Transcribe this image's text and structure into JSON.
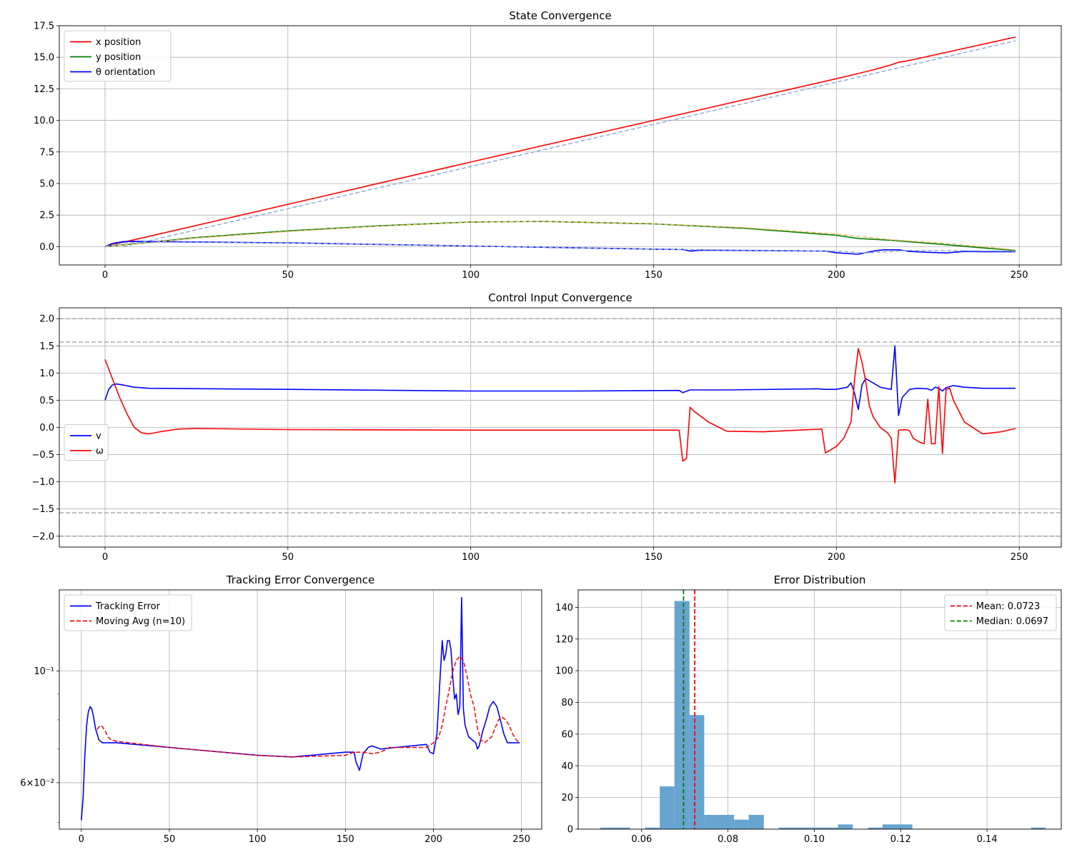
{
  "chart_data": [
    {
      "type": "line",
      "title": "State Convergence",
      "xlabel": "",
      "ylabel": "",
      "xlim": [
        -12.5,
        261.5
      ],
      "ylim": [
        -1.45,
        17.5
      ],
      "xticks": [
        0,
        50,
        100,
        150,
        200,
        250
      ],
      "yticks": [
        0.0,
        2.5,
        5.0,
        7.5,
        10.0,
        12.5,
        15.0,
        17.5
      ],
      "ytick_labels": [
        "0.0",
        "2.5",
        "5.0",
        "7.5",
        "10.0",
        "12.5",
        "15.0",
        "17.5"
      ],
      "grid": true,
      "legend": "upper-left",
      "series": [
        {
          "name": "x position",
          "color": "#ff0000",
          "style": "solid",
          "x": [
            0,
            5,
            10,
            50,
            100,
            150,
            200,
            205,
            210,
            215,
            217,
            220,
            249
          ],
          "y": [
            0,
            0.35,
            0.68,
            3.35,
            6.7,
            10.0,
            13.3,
            13.65,
            14.0,
            14.4,
            14.6,
            14.75,
            16.6
          ]
        },
        {
          "name": "y position",
          "color": "#008000",
          "style": "solid",
          "x": [
            0,
            10,
            25,
            50,
            75,
            100,
            120,
            150,
            175,
            200,
            206,
            215,
            230,
            240,
            249
          ],
          "y": [
            0,
            0.28,
            0.72,
            1.25,
            1.65,
            1.95,
            2.0,
            1.8,
            1.45,
            0.9,
            0.65,
            0.5,
            0.15,
            -0.1,
            -0.3
          ]
        },
        {
          "name": "θ orientation",
          "color": "#0000ff",
          "style": "solid",
          "x": [
            0,
            2,
            5,
            8,
            20,
            50,
            100,
            150,
            158,
            160,
            163,
            175,
            197,
            200,
            206,
            210,
            213,
            217,
            220,
            225,
            230,
            235,
            240,
            249
          ],
          "y": [
            0,
            0.25,
            0.4,
            0.42,
            0.38,
            0.3,
            0.05,
            -0.2,
            -0.22,
            -0.35,
            -0.28,
            -0.3,
            -0.35,
            -0.48,
            -0.6,
            -0.35,
            -0.25,
            -0.25,
            -0.38,
            -0.45,
            -0.5,
            -0.38,
            -0.4,
            -0.4
          ]
        },
        {
          "name": "",
          "color": "#92aed5",
          "style": "dashed",
          "x": [
            5,
            249
          ],
          "y": [
            0,
            16.3
          ]
        },
        {
          "name": "",
          "color": "#f0b86b",
          "style": "dashed",
          "x": [
            0,
            10,
            25,
            50,
            75,
            100,
            120,
            150,
            175,
            200,
            215,
            230,
            249
          ],
          "y": [
            0,
            0.25,
            0.68,
            1.2,
            1.62,
            1.93,
            2.0,
            1.82,
            1.5,
            1.0,
            0.55,
            0.25,
            -0.25
          ]
        },
        {
          "name": "",
          "color": "#92aed5",
          "style": "dashed",
          "x": [
            0,
            5,
            20,
            50,
            100,
            150,
            200,
            208,
            220,
            249
          ],
          "y": [
            0,
            0.3,
            0.35,
            0.28,
            0.05,
            -0.2,
            -0.35,
            -0.5,
            -0.3,
            -0.35
          ]
        }
      ]
    },
    {
      "type": "line",
      "title": "Control Input Convergence",
      "xlabel": "",
      "ylabel": "",
      "xlim": [
        -12.5,
        261.5
      ],
      "ylim": [
        -2.2,
        2.2
      ],
      "xticks": [
        0,
        50,
        100,
        150,
        200,
        250
      ],
      "yticks": [
        -2.0,
        -1.5,
        -1.0,
        -0.5,
        0.0,
        0.5,
        1.0,
        1.5,
        2.0
      ],
      "ytick_labels": [
        "−2.0",
        "−1.5",
        "−1.0",
        "−0.5",
        "0.0",
        "0.5",
        "1.0",
        "1.5",
        "2.0"
      ],
      "grid": true,
      "legend": "center-left",
      "reference_lines_y": [
        2.0,
        1.57,
        -1.57,
        -2.0
      ],
      "series": [
        {
          "name": "v",
          "color": "#0000ff",
          "style": "solid",
          "x": [
            0,
            1,
            2,
            3,
            5,
            8,
            12,
            50,
            100,
            130,
            157,
            158,
            160,
            170,
            195,
            197,
            200,
            203,
            204,
            205,
            206,
            207,
            208,
            210,
            212,
            214,
            215,
            216,
            217,
            218,
            220,
            222,
            225,
            226,
            227,
            228,
            229,
            230,
            232,
            235,
            240,
            245,
            249
          ],
          "y": [
            0.5,
            0.7,
            0.78,
            0.8,
            0.78,
            0.74,
            0.72,
            0.7,
            0.67,
            0.67,
            0.68,
            0.64,
            0.69,
            0.69,
            0.71,
            0.7,
            0.7,
            0.74,
            0.82,
            0.62,
            0.33,
            0.78,
            0.9,
            0.82,
            0.74,
            0.71,
            0.7,
            1.5,
            0.22,
            0.55,
            0.7,
            0.72,
            0.71,
            0.68,
            0.74,
            0.72,
            0.67,
            0.73,
            0.77,
            0.74,
            0.72,
            0.72,
            0.72
          ]
        },
        {
          "name": "ω",
          "color": "#ff0000",
          "style": "solid",
          "x": [
            0,
            2,
            4,
            6,
            8,
            10,
            12,
            15,
            20,
            25,
            50,
            100,
            157,
            158,
            159,
            160,
            161,
            165,
            170,
            180,
            196,
            197,
            200,
            202,
            204,
            205,
            206,
            207,
            208,
            209,
            210,
            212,
            214,
            215,
            216,
            217,
            219,
            220,
            221,
            223,
            224,
            225,
            226,
            227,
            228,
            229,
            230,
            231,
            232,
            235,
            240,
            245,
            249
          ],
          "y": [
            1.25,
            0.9,
            0.55,
            0.25,
            0.0,
            -0.1,
            -0.12,
            -0.08,
            -0.03,
            -0.02,
            -0.04,
            -0.05,
            -0.05,
            -0.62,
            -0.57,
            0.37,
            0.3,
            0.1,
            -0.07,
            -0.08,
            -0.03,
            -0.47,
            -0.35,
            -0.2,
            0.1,
            0.9,
            1.45,
            1.2,
            0.85,
            0.4,
            0.2,
            0.0,
            -0.1,
            -0.2,
            -1.02,
            -0.05,
            -0.04,
            -0.06,
            -0.2,
            -0.28,
            -0.3,
            0.52,
            -0.3,
            -0.3,
            0.75,
            -0.48,
            0.7,
            0.72,
            0.5,
            0.1,
            -0.12,
            -0.08,
            -0.02
          ]
        }
      ]
    },
    {
      "type": "line",
      "title": "Tracking Error Convergence",
      "xlabel": "",
      "ylabel": "",
      "yscale": "log",
      "xlim": [
        -12.5,
        261.5
      ],
      "ylim": [
        0.0485,
        0.145
      ],
      "xticks": [
        0,
        50,
        100,
        150,
        200,
        250
      ],
      "yticks": [
        0.1,
        0.06
      ],
      "ytick_labels": [
        "10⁻¹",
        "6×10⁻²"
      ],
      "grid": true,
      "legend": "upper-left",
      "series": [
        {
          "name": "Tracking Error",
          "color": "#0000ff",
          "style": "solid",
          "x": [
            0,
            1,
            2,
            3,
            4,
            5,
            6,
            7,
            8,
            10,
            12,
            15,
            20,
            50,
            100,
            120,
            150,
            155,
            156,
            158,
            160,
            163,
            165,
            170,
            196,
            198,
            200,
            202,
            204,
            205,
            206,
            207,
            208,
            209,
            210,
            211,
            212,
            213,
            214,
            215,
            216,
            217,
            218,
            220,
            222,
            224,
            225,
            226,
            228,
            230,
            232,
            234,
            236,
            238,
            240,
            242,
            245,
            249
          ],
          "y": [
            0.0505,
            0.056,
            0.068,
            0.078,
            0.083,
            0.085,
            0.084,
            0.081,
            0.077,
            0.073,
            0.072,
            0.072,
            0.072,
            0.0705,
            0.068,
            0.0675,
            0.069,
            0.069,
            0.066,
            0.0635,
            0.0685,
            0.0705,
            0.071,
            0.07,
            0.0715,
            0.069,
            0.0685,
            0.075,
            0.1,
            0.115,
            0.105,
            0.108,
            0.115,
            0.115,
            0.11,
            0.097,
            0.088,
            0.09,
            0.082,
            0.085,
            0.14,
            0.084,
            0.078,
            0.074,
            0.073,
            0.072,
            0.07,
            0.071,
            0.076,
            0.08,
            0.085,
            0.087,
            0.085,
            0.08,
            0.075,
            0.072,
            0.072,
            0.072
          ]
        },
        {
          "name": "Moving Avg (n=10)",
          "color": "#ff0000",
          "style": "dashed",
          "x": [
            9,
            10,
            11,
            12,
            13,
            14,
            15,
            17,
            20,
            50,
            100,
            120,
            150,
            155,
            160,
            165,
            170,
            175,
            196,
            200,
            203,
            205,
            207,
            209,
            211,
            213,
            215,
            217,
            219,
            221,
            223,
            225,
            227,
            229,
            231,
            233,
            235,
            237,
            239,
            241,
            243,
            245,
            247,
            249
          ],
          "y": [
            0.0765,
            0.0775,
            0.078,
            0.0775,
            0.0765,
            0.0755,
            0.074,
            0.073,
            0.0725,
            0.0705,
            0.068,
            0.0675,
            0.068,
            0.069,
            0.069,
            0.0685,
            0.069,
            0.0705,
            0.0705,
            0.072,
            0.074,
            0.078,
            0.085,
            0.092,
            0.1,
            0.105,
            0.107,
            0.105,
            0.098,
            0.09,
            0.085,
            0.077,
            0.073,
            0.072,
            0.073,
            0.074,
            0.077,
            0.08,
            0.081,
            0.08,
            0.078,
            0.075,
            0.073,
            0.072
          ]
        }
      ]
    },
    {
      "type": "bar",
      "title": "Error Distribution",
      "xlabel": "",
      "ylabel": "",
      "xlim": [
        0.0453,
        0.1572
      ],
      "ylim": [
        0,
        151
      ],
      "xticks": [
        0.06,
        0.08,
        0.1,
        0.12,
        0.14
      ],
      "xtick_labels": [
        "0.06",
        "0.08",
        "0.10",
        "0.12",
        "0.14"
      ],
      "yticks": [
        0,
        20,
        40,
        60,
        80,
        100,
        120,
        140
      ],
      "grid": true,
      "legend": "upper-right",
      "bar_color": "#5f9fce",
      "bins": [
        {
          "x0": 0.0504,
          "x1": 0.0539,
          "count": 1
        },
        {
          "x0": 0.0539,
          "x1": 0.0573,
          "count": 1
        },
        {
          "x0": 0.0573,
          "x1": 0.0608,
          "count": 0
        },
        {
          "x0": 0.0608,
          "x1": 0.0642,
          "count": 1
        },
        {
          "x0": 0.0642,
          "x1": 0.0676,
          "count": 27
        },
        {
          "x0": 0.0676,
          "x1": 0.0711,
          "count": 144
        },
        {
          "x0": 0.0711,
          "x1": 0.0745,
          "count": 72
        },
        {
          "x0": 0.0745,
          "x1": 0.078,
          "count": 9
        },
        {
          "x0": 0.078,
          "x1": 0.0814,
          "count": 9
        },
        {
          "x0": 0.0814,
          "x1": 0.0848,
          "count": 6
        },
        {
          "x0": 0.0848,
          "x1": 0.0883,
          "count": 9
        },
        {
          "x0": 0.0883,
          "x1": 0.0917,
          "count": 0
        },
        {
          "x0": 0.0917,
          "x1": 0.0952,
          "count": 1
        },
        {
          "x0": 0.0952,
          "x1": 0.0986,
          "count": 1
        },
        {
          "x0": 0.0986,
          "x1": 0.102,
          "count": 1
        },
        {
          "x0": 0.102,
          "x1": 0.1055,
          "count": 1
        },
        {
          "x0": 0.1055,
          "x1": 0.1089,
          "count": 3
        },
        {
          "x0": 0.1089,
          "x1": 0.1124,
          "count": 0
        },
        {
          "x0": 0.1124,
          "x1": 0.1158,
          "count": 1
        },
        {
          "x0": 0.1158,
          "x1": 0.1192,
          "count": 3
        },
        {
          "x0": 0.1192,
          "x1": 0.1227,
          "count": 3
        },
        {
          "x0": 0.1227,
          "x1": 0.1261,
          "count": 0
        },
        {
          "x0": 0.1261,
          "x1": 0.1296,
          "count": 0
        },
        {
          "x0": 0.1296,
          "x1": 0.133,
          "count": 0
        },
        {
          "x0": 0.133,
          "x1": 0.1364,
          "count": 0
        },
        {
          "x0": 0.1364,
          "x1": 0.1399,
          "count": 0
        },
        {
          "x0": 0.1399,
          "x1": 0.1433,
          "count": 0
        },
        {
          "x0": 0.1433,
          "x1": 0.1468,
          "count": 0
        },
        {
          "x0": 0.1468,
          "x1": 0.1502,
          "count": 0
        },
        {
          "x0": 0.1502,
          "x1": 0.1536,
          "count": 1
        }
      ],
      "vlines": [
        {
          "name": "Mean: 0.0723",
          "x": 0.0723,
          "color": "#ff0000",
          "style": "dashed"
        },
        {
          "name": "Median: 0.0697",
          "x": 0.0697,
          "color": "#008000",
          "style": "dashed"
        }
      ]
    }
  ]
}
